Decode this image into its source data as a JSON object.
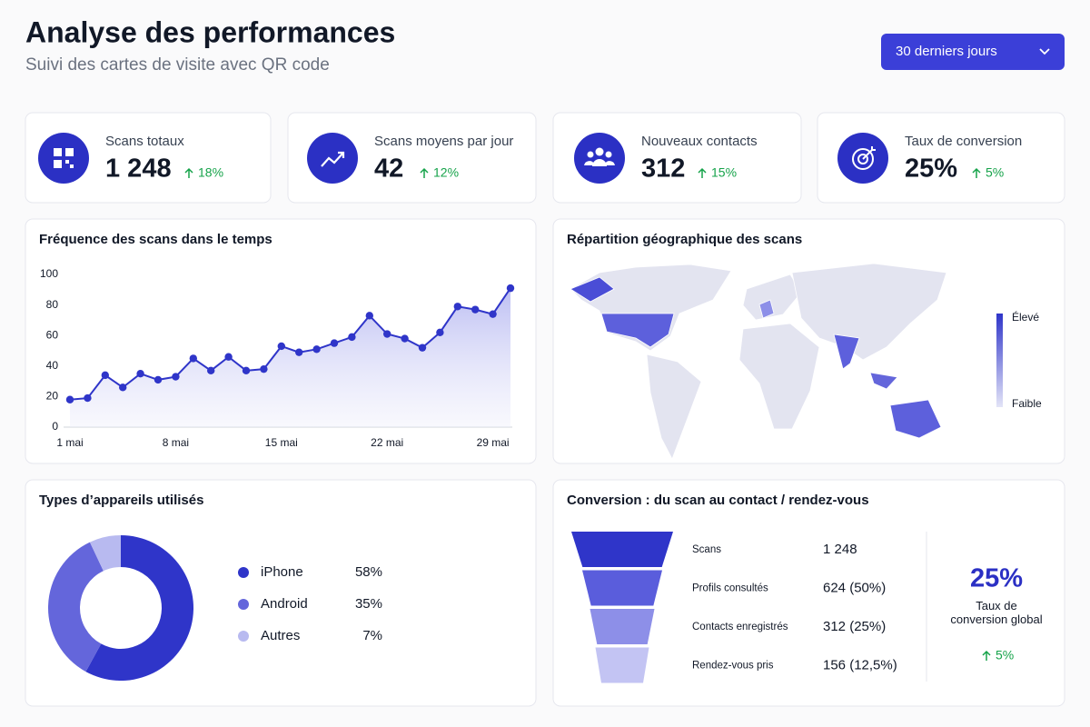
{
  "header": {
    "title": "Analyse des performances",
    "subtitle": "Suivi des cartes de visite avec QR code",
    "period": "30 derniers jours"
  },
  "kpis": [
    {
      "label": "Scans totaux",
      "value": "1 248",
      "change": "18%"
    },
    {
      "label": "Scans moyens par jour",
      "value": "42",
      "change": "12%"
    },
    {
      "label": "Nouveaux contacts",
      "value": "312",
      "change": "15%"
    },
    {
      "label": "Taux de conversion",
      "value": "25%",
      "change": "5%"
    }
  ],
  "map": {
    "title": "Répartition géographique des scans",
    "legend": [
      "Élevé",
      "Faible"
    ]
  },
  "chart_data": [
    {
      "type": "line",
      "title": "Fréquence des scans dans le temps",
      "categories": [
        "1 mai",
        null,
        null,
        null,
        null,
        null,
        "8 mai",
        null,
        null,
        null,
        null,
        null,
        "15 mai",
        null,
        null,
        null,
        null,
        null,
        "22 mai",
        null,
        null,
        null,
        null,
        null,
        "29 mai",
        null
      ],
      "values": [
        18,
        19,
        34,
        26,
        35,
        31,
        33,
        45,
        37,
        46,
        37,
        38,
        53,
        49,
        51,
        55,
        59,
        73,
        61,
        58,
        52,
        62,
        79,
        77,
        74,
        91
      ],
      "ylim": [
        0,
        100
      ],
      "yticks": [
        0,
        20,
        40,
        60,
        80,
        100
      ],
      "color": "#2f35c9"
    },
    {
      "type": "pie",
      "title": "Types d’appareils utilisés",
      "categories": [
        "iPhone",
        "Android",
        "Autres"
      ],
      "values": [
        58,
        35,
        7
      ],
      "value_labels": [
        "58%",
        "35%",
        "7%"
      ],
      "colors": [
        "#2f35c9",
        "#6466db",
        "#b8baf0"
      ]
    },
    {
      "type": "funnel",
      "title": "Conversion : du scan au contact / rendez-vous",
      "categories": [
        "Scans",
        "Profils consultés",
        "Contacts enregistrés",
        "Rendez-vous pris"
      ],
      "values": [
        1248,
        624,
        312,
        156
      ],
      "value_labels": [
        "1 248",
        "624 (50%)",
        "312 (25%)",
        "156 (12,5%)"
      ],
      "colors": [
        "#2f35c9",
        "#5a5ddc",
        "#8d8fe8",
        "#c3c4f3"
      ],
      "summary": {
        "value": "25%",
        "label": "Taux de conversion global",
        "change": "5%"
      }
    }
  ]
}
